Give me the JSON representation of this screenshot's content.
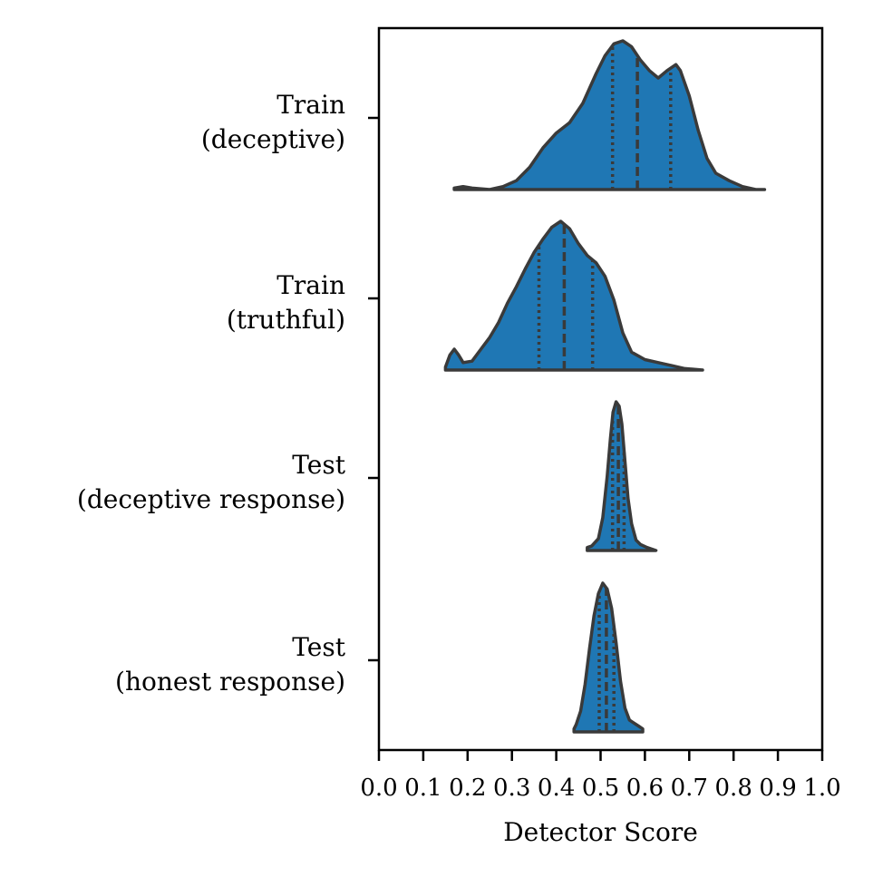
{
  "chart_data": {
    "type": "violin",
    "orientation": "horizontal",
    "title": "",
    "xlabel": "Detector Score",
    "ylabel": "",
    "xlim": [
      0.0,
      1.0
    ],
    "xticks": [
      "0.0",
      "0.1",
      "0.2",
      "0.3",
      "0.4",
      "0.5",
      "0.6",
      "0.7",
      "0.8",
      "0.9",
      "1.0"
    ],
    "half_violin": "upper",
    "inner": "quartile",
    "grid": false,
    "colors": {
      "fill": "#1f77b4",
      "edge": "#3a3a3a"
    },
    "categories": [
      {
        "label_lines": [
          "Train",
          "(deceptive)"
        ],
        "min": 0.17,
        "max": 0.87,
        "q1": 0.527,
        "median": 0.583,
        "q3": 0.658,
        "density": [
          [
            0.17,
            0.01
          ],
          [
            0.19,
            0.02
          ],
          [
            0.21,
            0.01
          ],
          [
            0.25,
            0.0
          ],
          [
            0.28,
            0.02
          ],
          [
            0.31,
            0.06
          ],
          [
            0.34,
            0.15
          ],
          [
            0.37,
            0.28
          ],
          [
            0.4,
            0.38
          ],
          [
            0.43,
            0.45
          ],
          [
            0.46,
            0.58
          ],
          [
            0.49,
            0.78
          ],
          [
            0.51,
            0.9
          ],
          [
            0.53,
            0.98
          ],
          [
            0.55,
            1.0
          ],
          [
            0.57,
            0.96
          ],
          [
            0.59,
            0.87
          ],
          [
            0.61,
            0.8
          ],
          [
            0.63,
            0.75
          ],
          [
            0.65,
            0.8
          ],
          [
            0.67,
            0.84
          ],
          [
            0.68,
            0.8
          ],
          [
            0.7,
            0.63
          ],
          [
            0.72,
            0.4
          ],
          [
            0.74,
            0.21
          ],
          [
            0.76,
            0.11
          ],
          [
            0.79,
            0.06
          ],
          [
            0.82,
            0.02
          ],
          [
            0.85,
            0.0
          ],
          [
            0.87,
            0.0
          ]
        ]
      },
      {
        "label_lines": [
          "Train",
          "(truthful)"
        ],
        "min": 0.15,
        "max": 0.73,
        "q1": 0.361,
        "median": 0.418,
        "q3": 0.482,
        "density": [
          [
            0.15,
            0.02
          ],
          [
            0.16,
            0.1
          ],
          [
            0.17,
            0.14
          ],
          [
            0.18,
            0.1
          ],
          [
            0.19,
            0.05
          ],
          [
            0.21,
            0.06
          ],
          [
            0.23,
            0.14
          ],
          [
            0.25,
            0.22
          ],
          [
            0.27,
            0.32
          ],
          [
            0.29,
            0.45
          ],
          [
            0.31,
            0.56
          ],
          [
            0.33,
            0.68
          ],
          [
            0.35,
            0.79
          ],
          [
            0.37,
            0.88
          ],
          [
            0.39,
            0.96
          ],
          [
            0.41,
            1.0
          ],
          [
            0.43,
            0.95
          ],
          [
            0.45,
            0.85
          ],
          [
            0.47,
            0.77
          ],
          [
            0.49,
            0.72
          ],
          [
            0.51,
            0.63
          ],
          [
            0.53,
            0.47
          ],
          [
            0.55,
            0.25
          ],
          [
            0.57,
            0.12
          ],
          [
            0.6,
            0.07
          ],
          [
            0.63,
            0.05
          ],
          [
            0.66,
            0.03
          ],
          [
            0.69,
            0.01
          ],
          [
            0.73,
            0.0
          ]
        ]
      },
      {
        "label_lines": [
          "Test",
          "(deceptive response)"
        ],
        "min": 0.47,
        "max": 0.625,
        "q1": 0.527,
        "median": 0.54,
        "q3": 0.553,
        "density": [
          [
            0.47,
            0.02
          ],
          [
            0.48,
            0.03
          ],
          [
            0.495,
            0.08
          ],
          [
            0.505,
            0.22
          ],
          [
            0.515,
            0.5
          ],
          [
            0.522,
            0.75
          ],
          [
            0.528,
            0.93
          ],
          [
            0.535,
            1.0
          ],
          [
            0.542,
            0.97
          ],
          [
            0.548,
            0.85
          ],
          [
            0.555,
            0.6
          ],
          [
            0.562,
            0.35
          ],
          [
            0.57,
            0.18
          ],
          [
            0.58,
            0.07
          ],
          [
            0.59,
            0.04
          ],
          [
            0.605,
            0.02
          ],
          [
            0.625,
            0.0
          ]
        ]
      },
      {
        "label_lines": [
          "Test",
          "(honest response)"
        ],
        "min": 0.44,
        "max": 0.595,
        "q1": 0.497,
        "median": 0.513,
        "q3": 0.53,
        "density": [
          [
            0.44,
            0.02
          ],
          [
            0.445,
            0.05
          ],
          [
            0.455,
            0.14
          ],
          [
            0.465,
            0.32
          ],
          [
            0.475,
            0.56
          ],
          [
            0.485,
            0.78
          ],
          [
            0.495,
            0.93
          ],
          [
            0.505,
            1.0
          ],
          [
            0.515,
            0.96
          ],
          [
            0.525,
            0.83
          ],
          [
            0.535,
            0.6
          ],
          [
            0.545,
            0.34
          ],
          [
            0.555,
            0.16
          ],
          [
            0.565,
            0.08
          ],
          [
            0.575,
            0.06
          ],
          [
            0.585,
            0.04
          ],
          [
            0.595,
            0.02
          ]
        ]
      }
    ]
  }
}
